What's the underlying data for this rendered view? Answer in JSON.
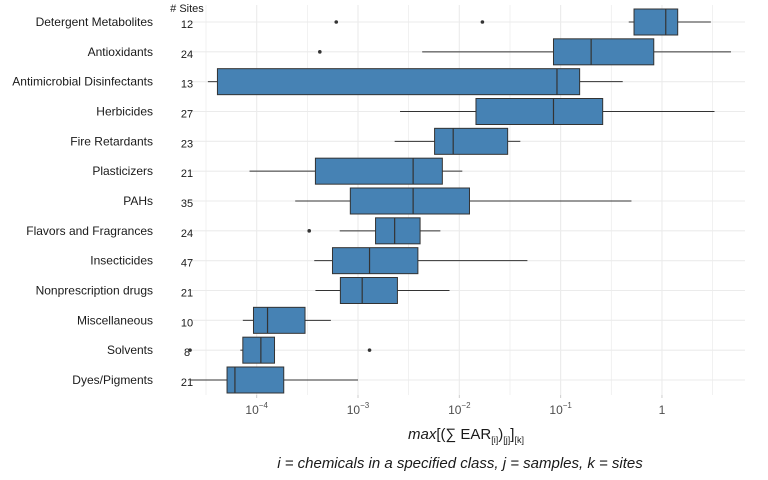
{
  "chart_data": {
    "type": "boxplot",
    "orientation": "horizontal",
    "x_scale": "log10",
    "xlim": [
      2.1e-05,
      6.6
    ],
    "grid": true,
    "box_color": "#4682b4",
    "sites_header": "# Sites",
    "x_ticks": [
      {
        "value": 0.0001,
        "base": "10",
        "exp": "−4"
      },
      {
        "value": 0.001,
        "base": "10",
        "exp": "−3"
      },
      {
        "value": 0.01,
        "base": "10",
        "exp": "−2"
      },
      {
        "value": 0.1,
        "base": "10",
        "exp": "−1"
      },
      {
        "value": 1,
        "base": "1",
        "exp": ""
      }
    ],
    "xlabel": {
      "italic": "max",
      "open": "[(∑ EAR",
      "sub_i": "[i]",
      "close1": ")",
      "sub_j": "[j]",
      "close2": "]",
      "sub_k": "[k]"
    },
    "caption": "i = chemicals in a specified class, j = samples, k = sites",
    "categories": [
      {
        "name": "Detergent Metabolites",
        "sites": "12",
        "whisker_low": 0.47,
        "q1": 0.53,
        "median": 1.09,
        "q3": 1.43,
        "whisker_high": 3.04,
        "outliers": [
          0.00061,
          0.0169
        ]
      },
      {
        "name": "Antioxidants",
        "sites": "24",
        "whisker_low": 0.0043,
        "q1": 0.085,
        "median": 0.2,
        "q3": 0.83,
        "whisker_high": 4.8,
        "outliers": [
          0.00042
        ]
      },
      {
        "name": "Antimicrobial Disinfectants",
        "sites": "13",
        "whisker_low": 3.3e-05,
        "q1": 4.1e-05,
        "median": 0.092,
        "q3": 0.154,
        "whisker_high": 0.41,
        "outliers": []
      },
      {
        "name": "Herbicides",
        "sites": "27",
        "whisker_low": 0.0026,
        "q1": 0.0146,
        "median": 0.085,
        "q3": 0.26,
        "whisker_high": 3.3,
        "outliers": []
      },
      {
        "name": "Fire Retardants",
        "sites": "23",
        "whisker_low": 0.0023,
        "q1": 0.0057,
        "median": 0.0087,
        "q3": 0.03,
        "whisker_high": 0.04,
        "outliers": []
      },
      {
        "name": "Plasticizers",
        "sites": "21",
        "whisker_low": 8.5e-05,
        "q1": 0.00038,
        "median": 0.0035,
        "q3": 0.0068,
        "whisker_high": 0.0107,
        "outliers": []
      },
      {
        "name": "PAHs",
        "sites": "35",
        "whisker_low": 0.00024,
        "q1": 0.00084,
        "median": 0.0035,
        "q3": 0.0126,
        "whisker_high": 0.5,
        "outliers": []
      },
      {
        "name": "Flavors and Fragrances",
        "sites": "24",
        "whisker_low": 0.00066,
        "q1": 0.00149,
        "median": 0.0023,
        "q3": 0.0041,
        "whisker_high": 0.0065,
        "outliers": [
          0.00033
        ]
      },
      {
        "name": "Insecticides",
        "sites": "47",
        "whisker_low": 0.00037,
        "q1": 0.00056,
        "median": 0.0013,
        "q3": 0.0039,
        "whisker_high": 0.047,
        "outliers": []
      },
      {
        "name": "Nonprescription drugs",
        "sites": "21",
        "whisker_low": 0.00038,
        "q1": 0.00067,
        "median": 0.0011,
        "q3": 0.00245,
        "whisker_high": 0.008,
        "outliers": []
      },
      {
        "name": "Miscellaneous",
        "sites": "10",
        "whisker_low": 7.3e-05,
        "q1": 9.3e-05,
        "median": 0.000128,
        "q3": 0.0003,
        "whisker_high": 0.00054,
        "outliers": []
      },
      {
        "name": "Solvents",
        "sites": "8",
        "whisker_low": 6.9e-05,
        "q1": 7.3e-05,
        "median": 0.00011,
        "q3": 0.00015,
        "whisker_high": 0.00015,
        "outliers": [
          2.2e-05,
          0.0013
        ]
      },
      {
        "name": "Dyes/Pigments",
        "sites": "21",
        "whisker_low": 2.2e-05,
        "q1": 5.1e-05,
        "median": 6.1e-05,
        "q3": 0.000185,
        "whisker_high": 0.001,
        "outliers": []
      }
    ]
  }
}
